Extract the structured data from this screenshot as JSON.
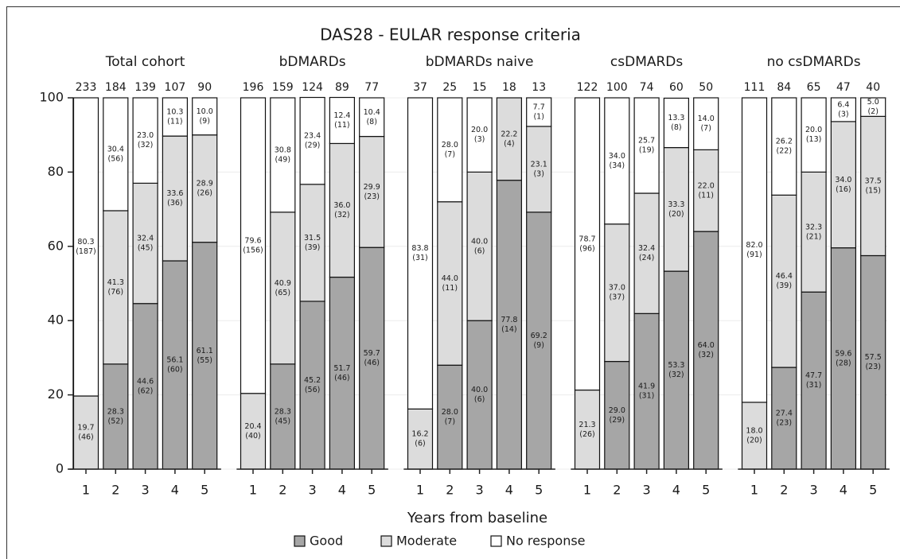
{
  "chart_data": {
    "type": "bar",
    "stacked": true,
    "title": "DAS28 - EULAR response criteria",
    "xlabel": "Years from baseline",
    "ylim": [
      0,
      100
    ],
    "yticks": [
      0,
      20,
      40,
      60,
      80,
      100
    ],
    "grid": true,
    "series": [
      {
        "name": "Good",
        "color": "#a6a6a6"
      },
      {
        "name": "Moderate",
        "color": "#dcdcdc"
      },
      {
        "name": "No response",
        "color": "#ffffff"
      }
    ],
    "panels": [
      {
        "title": "Total cohort",
        "categories": [
          1,
          2,
          3,
          4,
          5
        ],
        "totals": [
          233,
          184,
          139,
          107,
          90
        ],
        "values": [
          [
            null,
            28.3,
            44.6,
            56.1,
            61.1
          ],
          [
            19.7,
            41.3,
            32.4,
            33.6,
            28.9
          ],
          [
            80.3,
            30.4,
            23.0,
            10.3,
            10.0
          ]
        ],
        "value_labels": [
          [
            null,
            "28.3",
            "44.6",
            "56.1",
            "61.1"
          ],
          [
            "19.7",
            "41.3",
            "32.4",
            "33.6",
            "28.9"
          ],
          [
            "80.3",
            "30.4",
            "23.0",
            "10.3",
            "10.0"
          ]
        ],
        "count_labels": [
          [
            null,
            "(52)",
            "(62)",
            "(60)",
            "(55)"
          ],
          [
            "(46)",
            "(76)",
            "(45)",
            "(36)",
            "(26)"
          ],
          [
            "(187)",
            "(56)",
            "(32)",
            "(11)",
            "(9)"
          ]
        ]
      },
      {
        "title": "bDMARDs",
        "categories": [
          1,
          2,
          3,
          4,
          5
        ],
        "totals": [
          196,
          159,
          124,
          89,
          77
        ],
        "values": [
          [
            null,
            28.3,
            45.2,
            51.7,
            59.7
          ],
          [
            20.4,
            40.9,
            31.5,
            36.0,
            29.9
          ],
          [
            79.6,
            30.8,
            23.4,
            12.4,
            10.4
          ]
        ],
        "value_labels": [
          [
            null,
            "28.3",
            "45.2",
            "51.7",
            "59.7"
          ],
          [
            "20.4",
            "40.9",
            "31.5",
            "36.0",
            "29.9"
          ],
          [
            "79.6",
            "30.8",
            "23.4",
            "12.4",
            "10.4"
          ]
        ],
        "count_labels": [
          [
            null,
            "(45)",
            "(56)",
            "(46)",
            "(46)"
          ],
          [
            "(40)",
            "(65)",
            "(39)",
            "(32)",
            "(23)"
          ],
          [
            "(156)",
            "(49)",
            "(29)",
            "(11)",
            "(8)"
          ]
        ]
      },
      {
        "title": "bDMARDs naive",
        "categories": [
          1,
          2,
          3,
          4,
          5
        ],
        "totals": [
          37,
          25,
          15,
          18,
          13
        ],
        "values": [
          [
            null,
            28.0,
            40.0,
            77.8,
            69.2
          ],
          [
            16.2,
            44.0,
            40.0,
            22.2,
            23.1
          ],
          [
            83.8,
            28.0,
            20.0,
            null,
            7.7
          ]
        ],
        "value_labels": [
          [
            null,
            "28.0",
            "40.0",
            "77.8",
            "69.2"
          ],
          [
            "16.2",
            "44.0",
            "40.0",
            "22.2",
            "23.1"
          ],
          [
            "83.8",
            "28.0",
            "20.0",
            null,
            "7.7"
          ]
        ],
        "count_labels": [
          [
            null,
            "(7)",
            "(6)",
            "(14)",
            "(9)"
          ],
          [
            "(6)",
            "(11)",
            "(6)",
            "(4)",
            "(3)"
          ],
          [
            "(31)",
            "(7)",
            "(3)",
            null,
            "(1)"
          ]
        ]
      },
      {
        "title": "csDMARDs",
        "categories": [
          1,
          2,
          3,
          4,
          5
        ],
        "totals": [
          122,
          100,
          74,
          60,
          50
        ],
        "values": [
          [
            null,
            29.0,
            41.9,
            53.3,
            64.0
          ],
          [
            21.3,
            37.0,
            32.4,
            33.3,
            22.0
          ],
          [
            78.7,
            34.0,
            25.7,
            13.3,
            14.0
          ]
        ],
        "value_labels": [
          [
            null,
            "29.0",
            "41.9",
            "53.3",
            "64.0"
          ],
          [
            "21.3",
            "37.0",
            "32.4",
            "33.3",
            "22.0"
          ],
          [
            "78.7",
            "34.0",
            "25.7",
            "13.3",
            "14.0"
          ]
        ],
        "count_labels": [
          [
            null,
            "(29)",
            "(31)",
            "(32)",
            "(32)"
          ],
          [
            "(26)",
            "(37)",
            "(24)",
            "(20)",
            "(11)"
          ],
          [
            "(96)",
            "(34)",
            "(19)",
            "(8)",
            "(7)"
          ]
        ]
      },
      {
        "title": "no csDMARDs",
        "categories": [
          1,
          2,
          3,
          4,
          5
        ],
        "totals": [
          111,
          84,
          65,
          47,
          40
        ],
        "values": [
          [
            null,
            27.4,
            47.7,
            59.6,
            57.5
          ],
          [
            18.0,
            46.4,
            32.3,
            34.0,
            37.5
          ],
          [
            82.0,
            26.2,
            20.0,
            6.4,
            5.0
          ]
        ],
        "value_labels": [
          [
            null,
            "27.4",
            "47.7",
            "59.6",
            "57.5"
          ],
          [
            "18.0",
            "46.4",
            "32.3",
            "34.0",
            "37.5"
          ],
          [
            "82.0",
            "26.2",
            "20.0",
            "6.4",
            "5.0"
          ]
        ],
        "count_labels": [
          [
            null,
            "(23)",
            "(31)",
            "(28)",
            "(23)"
          ],
          [
            "(20)",
            "(39)",
            "(21)",
            "(16)",
            "(15)"
          ],
          [
            "(91)",
            "(22)",
            "(13)",
            "(3)",
            "(2)"
          ]
        ]
      }
    ]
  }
}
